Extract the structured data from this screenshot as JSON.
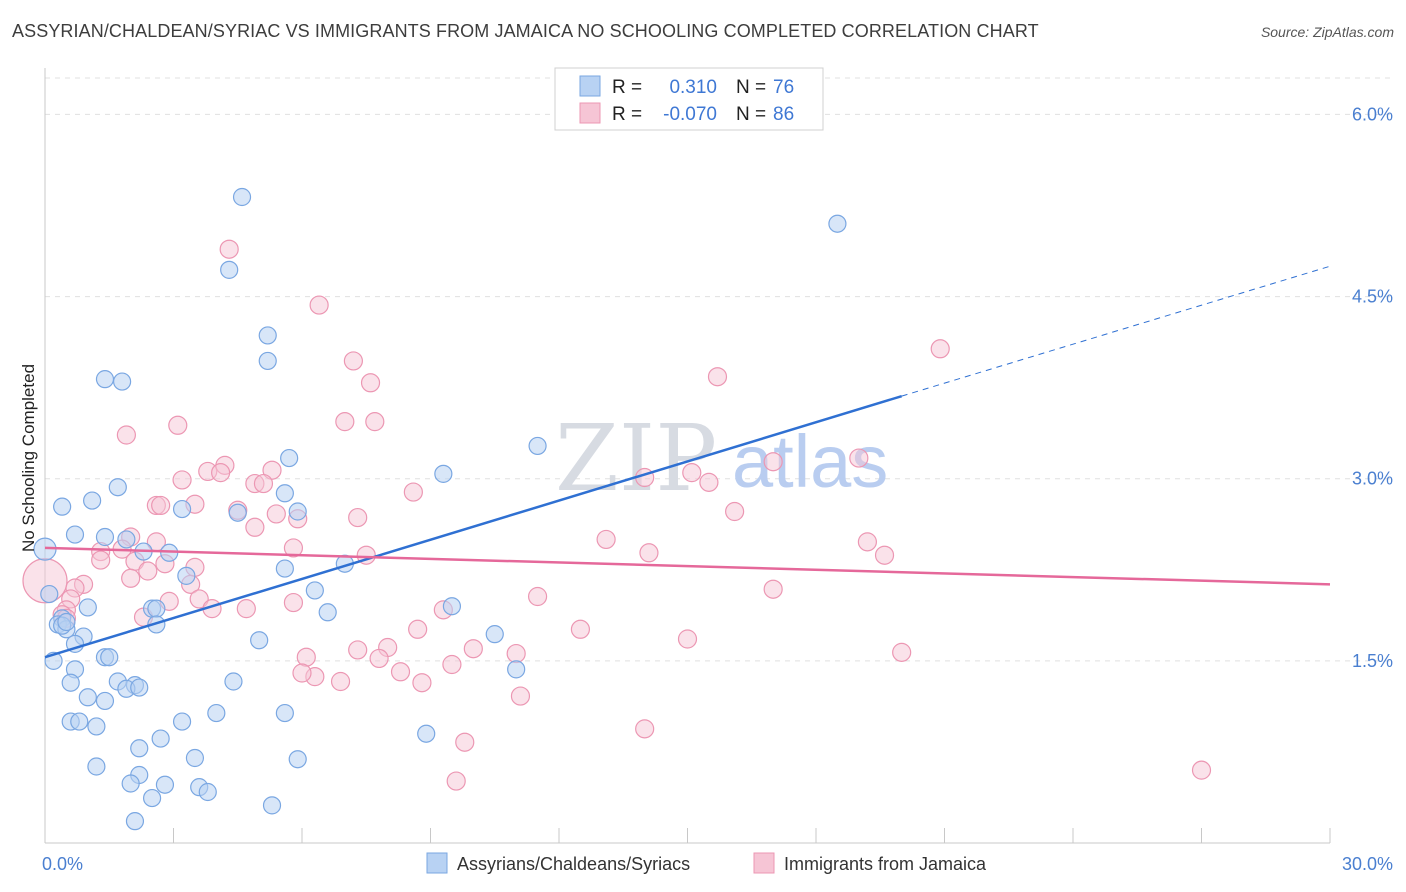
{
  "title": "ASSYRIAN/CHALDEAN/SYRIAC VS IMMIGRANTS FROM JAMAICA NO SCHOOLING COMPLETED CORRELATION CHART",
  "source": "Source: ZipAtlas.com",
  "watermark": {
    "zip": "ZIP",
    "atlas": "atlas"
  },
  "colors": {
    "blue_fill": "#b8d2f3",
    "blue_stroke": "#7aa7e2",
    "blue_line": "#2f70d2",
    "pink_fill": "#f6c5d5",
    "pink_stroke": "#ec97b3",
    "pink_line": "#e5689a",
    "tick_text": "#4a7fd0",
    "grid": "#e0e0e0"
  },
  "stats": [
    {
      "r_label": "R =",
      "r_value": "0.310",
      "n_label": "N =",
      "n_value": "76"
    },
    {
      "r_label": "R =",
      "r_value": "-0.070",
      "n_label": "N =",
      "n_value": "86"
    }
  ],
  "chart_data": {
    "type": "scatter",
    "title": "ASSYRIAN/CHALDEAN/SYRIAC VS IMMIGRANTS FROM JAMAICA NO SCHOOLING COMPLETED CORRELATION CHART",
    "xlabel": "",
    "ylabel": "No Schooling Completed",
    "xlim": [
      0,
      30
    ],
    "ylim": [
      0,
      6.3
    ],
    "x_tick_labels": [
      "0.0%",
      "30.0%"
    ],
    "y_ticks": [
      1.5,
      3.0,
      4.5,
      6.0
    ],
    "y_tick_labels": [
      "1.5%",
      "3.0%",
      "4.5%",
      "6.0%"
    ],
    "grid": true,
    "legend_position": "bottom-center",
    "series": [
      {
        "name": "Assyrians/Chaldeans/Syriacs",
        "color": "#b8d2f3",
        "trend": {
          "x": [
            0,
            20
          ],
          "y": [
            1.53,
            3.68
          ],
          "dashed_to": [
            30,
            4.75
          ]
        },
        "points": [
          [
            4.6,
            5.32
          ],
          [
            18.5,
            5.1
          ],
          [
            4.3,
            4.72
          ],
          [
            5.2,
            4.18
          ],
          [
            5.2,
            3.97
          ],
          [
            1.4,
            3.82
          ],
          [
            1.8,
            3.8
          ],
          [
            11.5,
            3.27
          ],
          [
            5.7,
            3.17
          ],
          [
            9.3,
            3.04
          ],
          [
            1.7,
            2.93
          ],
          [
            5.6,
            2.88
          ],
          [
            1.1,
            2.82
          ],
          [
            0.4,
            2.77
          ],
          [
            3.2,
            2.75
          ],
          [
            4.5,
            2.72
          ],
          [
            5.9,
            2.73
          ],
          [
            1.4,
            2.52
          ],
          [
            0.7,
            2.54
          ],
          [
            1.9,
            2.5
          ],
          [
            0.0,
            2.42
          ],
          [
            2.3,
            2.4
          ],
          [
            2.9,
            2.39
          ],
          [
            7.0,
            2.3
          ],
          [
            3.3,
            2.2
          ],
          [
            5.6,
            2.26
          ],
          [
            6.3,
            2.08
          ],
          [
            0.1,
            2.05
          ],
          [
            1.0,
            1.94
          ],
          [
            2.5,
            1.93
          ],
          [
            2.6,
            1.93
          ],
          [
            6.6,
            1.9
          ],
          [
            9.5,
            1.95
          ],
          [
            10.5,
            1.72
          ],
          [
            0.4,
            1.85
          ],
          [
            0.3,
            1.8
          ],
          [
            0.5,
            1.76
          ],
          [
            0.9,
            1.7
          ],
          [
            2.6,
            1.8
          ],
          [
            0.7,
            1.64
          ],
          [
            5.0,
            1.67
          ],
          [
            1.4,
            1.53
          ],
          [
            1.5,
            1.53
          ],
          [
            0.2,
            1.5
          ],
          [
            0.7,
            1.43
          ],
          [
            11.0,
            1.43
          ],
          [
            0.6,
            1.32
          ],
          [
            1.7,
            1.33
          ],
          [
            2.1,
            1.3
          ],
          [
            4.4,
            1.33
          ],
          [
            1.9,
            1.27
          ],
          [
            2.2,
            1.28
          ],
          [
            1.0,
            1.2
          ],
          [
            1.4,
            1.17
          ],
          [
            4.0,
            1.07
          ],
          [
            5.6,
            1.07
          ],
          [
            0.6,
            1.0
          ],
          [
            0.8,
            1.0
          ],
          [
            3.2,
            1.0
          ],
          [
            1.2,
            0.96
          ],
          [
            2.7,
            0.86
          ],
          [
            8.9,
            0.9
          ],
          [
            2.2,
            0.78
          ],
          [
            3.5,
            0.7
          ],
          [
            5.9,
            0.69
          ],
          [
            1.2,
            0.63
          ],
          [
            2.2,
            0.56
          ],
          [
            2.0,
            0.49
          ],
          [
            2.8,
            0.48
          ],
          [
            3.6,
            0.46
          ],
          [
            3.8,
            0.42
          ],
          [
            2.5,
            0.37
          ],
          [
            5.3,
            0.31
          ],
          [
            2.1,
            0.18
          ],
          [
            0.4,
            1.79
          ],
          [
            0.5,
            1.82
          ]
        ]
      },
      {
        "name": "Immigrants from Jamaica",
        "color": "#f6c5d5",
        "trend": {
          "x": [
            0,
            30
          ],
          "y": [
            2.43,
            2.13
          ]
        },
        "points": [
          [
            4.3,
            4.89
          ],
          [
            6.4,
            4.43
          ],
          [
            20.9,
            4.07
          ],
          [
            7.2,
            3.97
          ],
          [
            15.7,
            3.84
          ],
          [
            7.6,
            3.79
          ],
          [
            7.0,
            3.47
          ],
          [
            7.7,
            3.47
          ],
          [
            3.1,
            3.44
          ],
          [
            1.9,
            3.36
          ],
          [
            4.2,
            3.11
          ],
          [
            19.0,
            3.17
          ],
          [
            17.0,
            3.14
          ],
          [
            3.8,
            3.06
          ],
          [
            4.1,
            3.05
          ],
          [
            5.3,
            3.07
          ],
          [
            14.0,
            3.01
          ],
          [
            15.1,
            3.05
          ],
          [
            3.2,
            2.99
          ],
          [
            4.9,
            2.96
          ],
          [
            5.1,
            2.96
          ],
          [
            8.6,
            2.89
          ],
          [
            15.5,
            2.97
          ],
          [
            3.5,
            2.79
          ],
          [
            2.6,
            2.78
          ],
          [
            2.7,
            2.78
          ],
          [
            4.5,
            2.74
          ],
          [
            5.4,
            2.71
          ],
          [
            16.1,
            2.73
          ],
          [
            7.3,
            2.68
          ],
          [
            5.9,
            2.67
          ],
          [
            4.9,
            2.6
          ],
          [
            2.0,
            2.52
          ],
          [
            2.6,
            2.48
          ],
          [
            13.1,
            2.5
          ],
          [
            19.2,
            2.48
          ],
          [
            1.8,
            2.42
          ],
          [
            1.3,
            2.4
          ],
          [
            5.8,
            2.43
          ],
          [
            14.1,
            2.39
          ],
          [
            19.6,
            2.37
          ],
          [
            7.5,
            2.37
          ],
          [
            2.1,
            2.32
          ],
          [
            1.3,
            2.33
          ],
          [
            2.8,
            2.3
          ],
          [
            3.5,
            2.27
          ],
          [
            2.4,
            2.24
          ],
          [
            2.0,
            2.18
          ],
          [
            0.9,
            2.13
          ],
          [
            3.4,
            2.13
          ],
          [
            0.7,
            2.1
          ],
          [
            17.0,
            2.09
          ],
          [
            11.5,
            2.03
          ],
          [
            3.6,
            2.01
          ],
          [
            2.9,
            1.99
          ],
          [
            5.8,
            1.98
          ],
          [
            0.6,
            2.01
          ],
          [
            9.3,
            1.92
          ],
          [
            4.7,
            1.93
          ],
          [
            3.9,
            1.93
          ],
          [
            0.5,
            1.92
          ],
          [
            2.3,
            1.86
          ],
          [
            0.4,
            1.88
          ],
          [
            12.5,
            1.76
          ],
          [
            8.7,
            1.76
          ],
          [
            15.0,
            1.68
          ],
          [
            7.3,
            1.59
          ],
          [
            10.0,
            1.6
          ],
          [
            11.0,
            1.56
          ],
          [
            20.0,
            1.57
          ],
          [
            8.0,
            1.61
          ],
          [
            6.1,
            1.53
          ],
          [
            7.8,
            1.52
          ],
          [
            9.5,
            1.47
          ],
          [
            8.3,
            1.41
          ],
          [
            6.3,
            1.37
          ],
          [
            6.9,
            1.33
          ],
          [
            8.8,
            1.32
          ],
          [
            11.1,
            1.21
          ],
          [
            14.0,
            0.94
          ],
          [
            9.8,
            0.83
          ],
          [
            9.6,
            0.51
          ],
          [
            27.0,
            0.6
          ],
          [
            0.0,
            2.16
          ],
          [
            6.0,
            1.4
          ],
          [
            0.5,
            1.85
          ]
        ]
      }
    ]
  },
  "legend": {
    "series": [
      {
        "label": "Assyrians/Chaldeans/Syriacs"
      },
      {
        "label": "Immigrants from Jamaica"
      }
    ]
  }
}
